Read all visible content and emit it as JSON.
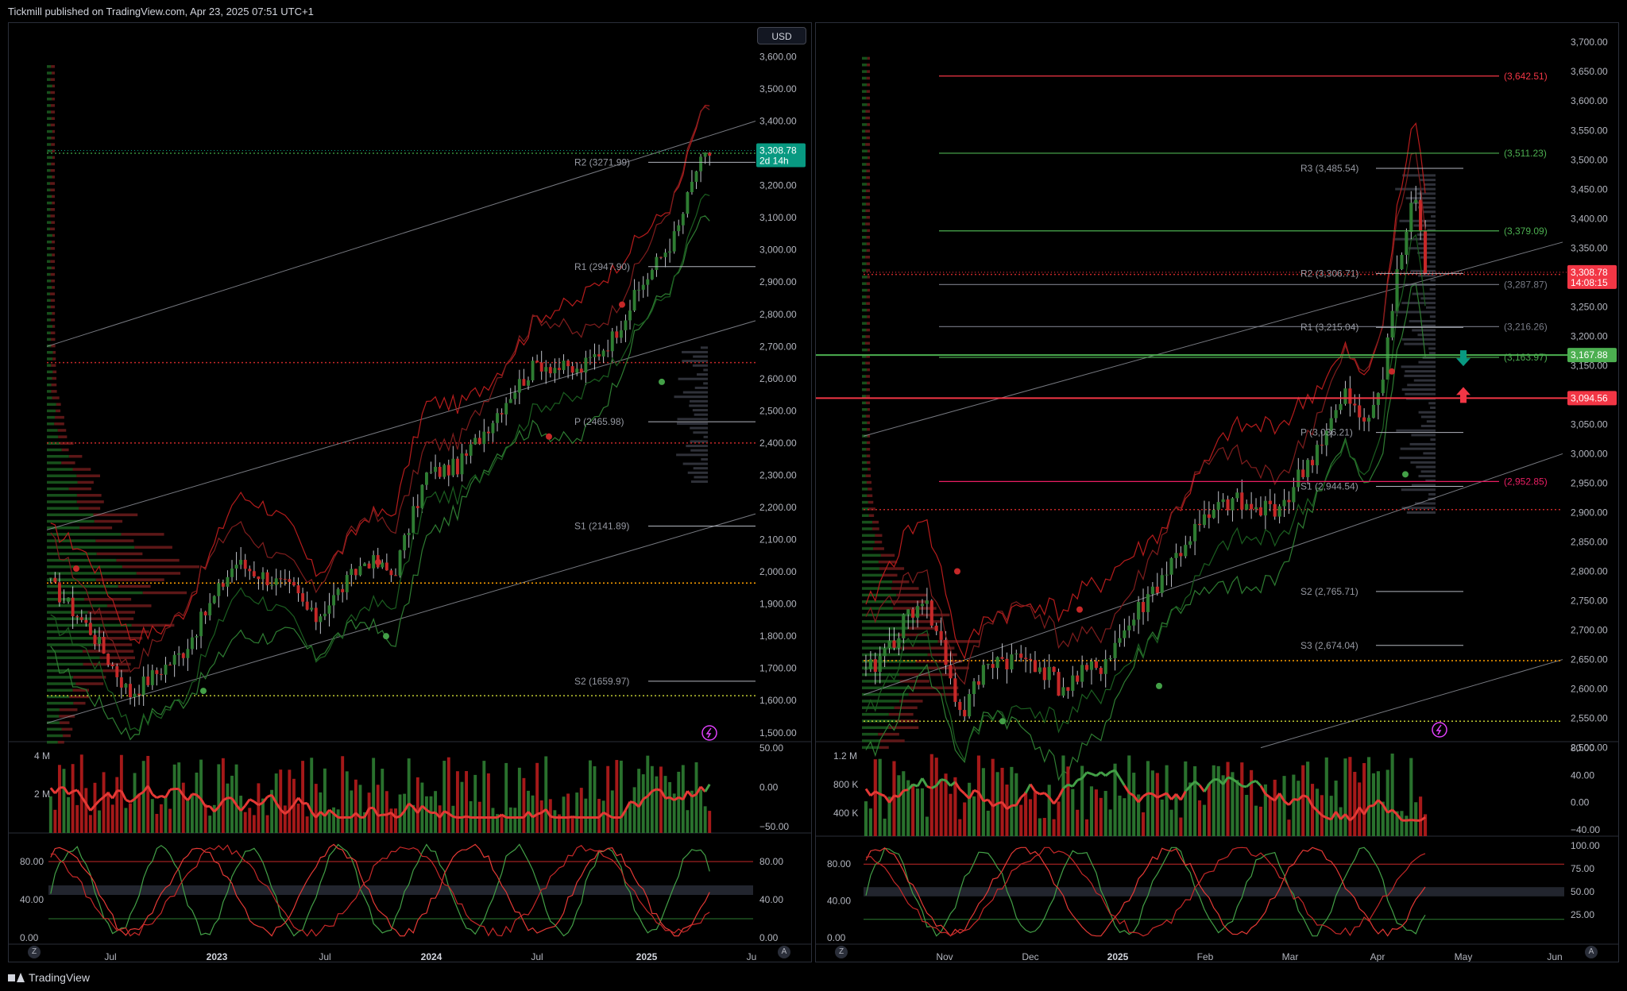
{
  "header": {
    "published": "Tickmill published on TradingView.com, Apr 23, 2025 07:51 UTC+1"
  },
  "footer": {
    "logo_text": "TradingView"
  },
  "colors": {
    "up": "#2e7d32",
    "down": "#c62828",
    "green_label": "#089981",
    "red_label": "#f23645",
    "bg": "#000000"
  },
  "left_chart": {
    "currency": "USD",
    "price_axis": [
      "3,600.00",
      "3,500.00",
      "3,400.00",
      "3,300.00",
      "3,200.00",
      "3,100.00",
      "3,000.00",
      "2,900.00",
      "2,800.00",
      "2,700.00",
      "2,600.00",
      "2,500.00",
      "2,400.00",
      "2,300.00",
      "2,200.00",
      "2,100.00",
      "2,000.00",
      "1,900.00",
      "1,800.00",
      "1,700.00",
      "1,600.00",
      "1,500.00"
    ],
    "current_price": "3,308.78",
    "countdown": "2d 14h",
    "pivots": [
      {
        "label": "R2 (3271.99)",
        "price": 3271.99
      },
      {
        "label": "R1 (2947.90)",
        "price": 2947.9
      },
      {
        "label": "P (2465.98)",
        "price": 2465.98
      },
      {
        "label": "S1 (2141.89)",
        "price": 2141.89
      },
      {
        "label": "S2 (1659.97)",
        "price": 1659.97
      }
    ],
    "time_axis": [
      "Jul",
      "2023",
      "Jul",
      "2024",
      "Jul",
      "2025",
      "Ju"
    ],
    "volume_axis": [
      "4 M",
      "2 M"
    ],
    "osc_axis": [
      "50.00",
      "0.00",
      "−50.00"
    ],
    "stoch_axis_left": [
      "80.00",
      "40.00",
      "0.00"
    ],
    "stoch_axis_right": [
      "80.00",
      "40.00",
      "0.00"
    ],
    "z_button": "Z",
    "a_button": "A"
  },
  "right_chart": {
    "price_axis": [
      "3,700.00",
      "3,650.00",
      "3,600.00",
      "3,550.00",
      "3,500.00",
      "3,450.00",
      "3,400.00",
      "3,350.00",
      "3,300.00",
      "3,250.00",
      "3,200.00",
      "3,150.00",
      "3,100.00",
      "3,050.00",
      "3,000.00",
      "2,950.00",
      "2,900.00",
      "2,850.00",
      "2,800.00",
      "2,750.00",
      "2,700.00",
      "2,650.00",
      "2,600.00",
      "2,550.00",
      "2,500.00"
    ],
    "current_price": "3,308.78",
    "countdown": "14:08:15",
    "green_level": "3,167.88",
    "red_level": "3,094.56",
    "pivots": [
      {
        "label": "R3 (3,485.54)",
        "price": 3485.54
      },
      {
        "label": "R2 (3,306.71)",
        "price": 3306.71
      },
      {
        "label": "R1 (3,215.04)",
        "price": 3215.04
      },
      {
        "label": "P (3,036.21)",
        "price": 3036.21
      },
      {
        "label": "S1 (2,944.54)",
        "price": 2944.54
      },
      {
        "label": "S2 (2,765.71)",
        "price": 2765.71
      },
      {
        "label": "S3 (2,674.04)",
        "price": 2674.04
      }
    ],
    "fib_levels": [
      {
        "label": "(3,642.51)",
        "price": 3642.51,
        "color": "#f23645"
      },
      {
        "label": "(3,511.23)",
        "price": 3511.23,
        "color": "#4caf50"
      },
      {
        "label": "(3,379.09)",
        "price": 3379.09,
        "color": "#4caf50"
      },
      {
        "label": "(3,287.87)",
        "price": 3287.87,
        "color": "#787b86"
      },
      {
        "label": "(3,216.26)",
        "price": 3216.26,
        "color": "#787b86"
      },
      {
        "label": "(3,163.97)",
        "price": 3163.97,
        "color": "#4caf50"
      },
      {
        "label": "(2,952.85)",
        "price": 2952.85,
        "color": "#e91e63"
      }
    ],
    "time_axis": [
      "Nov",
      "Dec",
      "2025",
      "Feb",
      "Mar",
      "Apr",
      "May",
      "Jun"
    ],
    "volume_axis": [
      "1.2 M",
      "800 K",
      "400 K"
    ],
    "osc_axis": [
      "80.00",
      "40.00",
      "0.00",
      "−40.00"
    ],
    "stoch_axis_left": [
      "80.00",
      "40.00",
      "0.00"
    ],
    "stoch_axis_right": [
      "100.00",
      "75.00",
      "50.00",
      "25.00"
    ],
    "z_button": "Z",
    "a_button": "A"
  }
}
